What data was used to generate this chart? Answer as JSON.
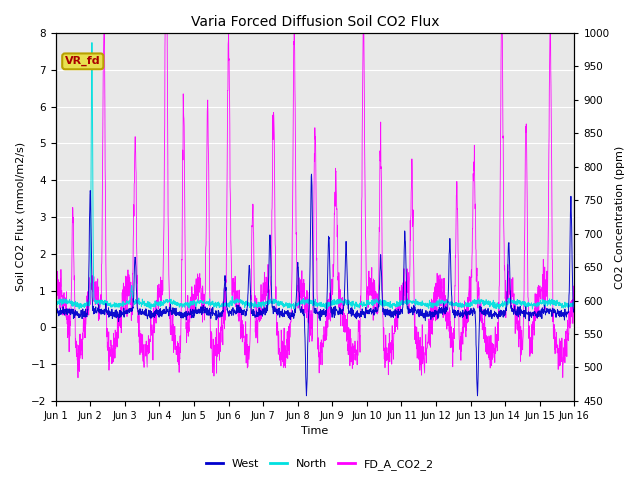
{
  "title": "Varia Forced Diffusion Soil CO2 Flux",
  "ylabel_left": "Soil CO2 Flux (mmol/m2/s)",
  "ylabel_right": "CO2 Concentration (ppm)",
  "xlabel": "Time",
  "ylim_left": [
    -2.0,
    8.0
  ],
  "ylim_right": [
    450,
    1000
  ],
  "xtick_labels": [
    "Jun 1",
    "Jun 2",
    "Jun 3",
    "Jun 4",
    "Jun 5",
    "Jun 6",
    "Jun 7",
    "Jun 8",
    "Jun 9",
    "Jun 10",
    "Jun 11",
    "Jun 12",
    "Jun 13",
    "Jun 14",
    "Jun 15",
    "Jun 16"
  ],
  "legend_labels": [
    "West",
    "North",
    "FD_A_CO2_2"
  ],
  "west_color": "#0000cd",
  "north_color": "#00e0e0",
  "co2_color": "#ff00ff",
  "annotation_text": "VR_fd",
  "annotation_bg": "#e8e050",
  "annotation_fg": "#aa0000",
  "annotation_edge": "#b8a000",
  "bg_color": "#e8e8e8",
  "grid_color": "#ffffff",
  "fig_bg": "#ffffff",
  "title_fontsize": 10,
  "label_fontsize": 8,
  "tick_fontsize": 7.5,
  "legend_fontsize": 8
}
